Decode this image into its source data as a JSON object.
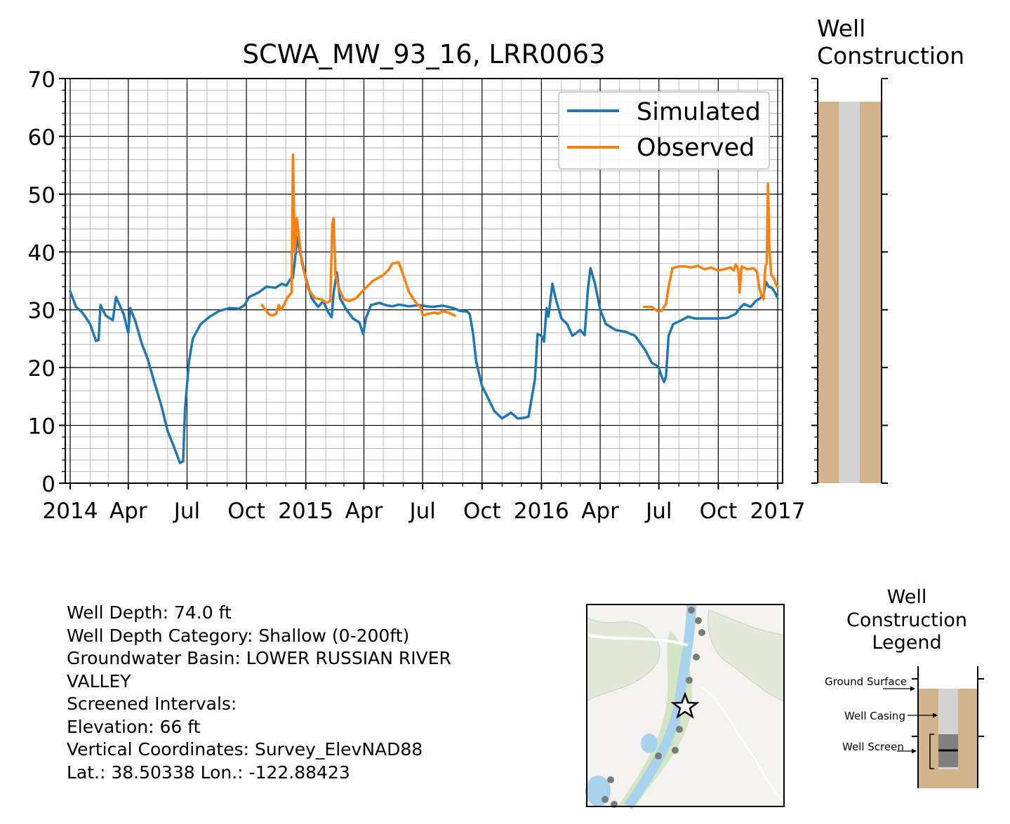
{
  "chart_data": {
    "type": "line",
    "title": "SCWA_MW_93_16, LRR0063",
    "xlabel": "",
    "ylabel": "",
    "ylim": [
      0,
      70
    ],
    "xlim": [
      "2014-01-01",
      "2017-01-01"
    ],
    "grid": true,
    "legend_position": "top-right",
    "yticks": [
      "0",
      "10",
      "20",
      "30",
      "40",
      "50",
      "60",
      "70"
    ],
    "xticks": [
      {
        "date": "2014-01-01",
        "label": "2014"
      },
      {
        "date": "2014-04-01",
        "label": "Apr"
      },
      {
        "date": "2014-07-01",
        "label": "Jul"
      },
      {
        "date": "2014-10-01",
        "label": "Oct"
      },
      {
        "date": "2015-01-01",
        "label": "2015"
      },
      {
        "date": "2015-04-01",
        "label": "Apr"
      },
      {
        "date": "2015-07-01",
        "label": "Jul"
      },
      {
        "date": "2015-10-01",
        "label": "Oct"
      },
      {
        "date": "2016-01-01",
        "label": "2016"
      },
      {
        "date": "2016-04-01",
        "label": "Apr"
      },
      {
        "date": "2016-07-01",
        "label": "Jul"
      },
      {
        "date": "2016-10-01",
        "label": "Oct"
      },
      {
        "date": "2017-01-01",
        "label": "2017"
      }
    ],
    "series": [
      {
        "name": "Simulated",
        "color": "#1f77b4",
        "points": [
          [
            "2014-01-01",
            33.2
          ],
          [
            "2014-01-10",
            30.5
          ],
          [
            "2014-01-20",
            29.5
          ],
          [
            "2014-02-01",
            27.5
          ],
          [
            "2014-02-10",
            24.6
          ],
          [
            "2014-02-14",
            24.8
          ],
          [
            "2014-02-17",
            30.8
          ],
          [
            "2014-02-25",
            29
          ],
          [
            "2014-03-08",
            28.2
          ],
          [
            "2014-03-13",
            32.2
          ],
          [
            "2014-03-25",
            29.2
          ],
          [
            "2014-04-01",
            26
          ],
          [
            "2014-04-04",
            30.3
          ],
          [
            "2014-04-12",
            28
          ],
          [
            "2014-04-22",
            24.1
          ],
          [
            "2014-05-01",
            21.5
          ],
          [
            "2014-05-10",
            18
          ],
          [
            "2014-05-22",
            13.5
          ],
          [
            "2014-06-01",
            9
          ],
          [
            "2014-06-10",
            6.5
          ],
          [
            "2014-06-20",
            3.5
          ],
          [
            "2014-06-25",
            3.8
          ],
          [
            "2014-06-28",
            13
          ],
          [
            "2014-07-04",
            21
          ],
          [
            "2014-07-10",
            25
          ],
          [
            "2014-07-22",
            27.5
          ],
          [
            "2014-08-05",
            28.8
          ],
          [
            "2014-08-20",
            29.8
          ],
          [
            "2014-09-05",
            30.3
          ],
          [
            "2014-09-20",
            30.2
          ],
          [
            "2014-09-28",
            30.8
          ],
          [
            "2014-10-05",
            32.2
          ],
          [
            "2014-10-20",
            33
          ],
          [
            "2014-11-01",
            34
          ],
          [
            "2014-11-15",
            33.8
          ],
          [
            "2014-11-25",
            34.5
          ],
          [
            "2014-12-02",
            34.2
          ],
          [
            "2014-12-08",
            35.3
          ],
          [
            "2014-12-12",
            35.5
          ],
          [
            "2014-12-15",
            38.5
          ],
          [
            "2014-12-19",
            42.5
          ],
          [
            "2014-12-23",
            40
          ],
          [
            "2015-01-01",
            35.5
          ],
          [
            "2015-01-10",
            32
          ],
          [
            "2015-01-20",
            30.5
          ],
          [
            "2015-01-28",
            31.5
          ],
          [
            "2015-02-05",
            29.5
          ],
          [
            "2015-02-10",
            28.7
          ],
          [
            "2015-02-13",
            32.8
          ],
          [
            "2015-02-18",
            36.5
          ],
          [
            "2015-02-23",
            32
          ],
          [
            "2015-03-05",
            30
          ],
          [
            "2015-03-15",
            28.5
          ],
          [
            "2015-03-25",
            27.8
          ],
          [
            "2015-03-31",
            25.8
          ],
          [
            "2015-04-04",
            28.5
          ],
          [
            "2015-04-12",
            30.8
          ],
          [
            "2015-04-25",
            31.2
          ],
          [
            "2015-05-05",
            30.8
          ],
          [
            "2015-05-15",
            30.6
          ],
          [
            "2015-05-25",
            30.9
          ],
          [
            "2015-06-10",
            30.6
          ],
          [
            "2015-06-25",
            30.8
          ],
          [
            "2015-07-15",
            30.5
          ],
          [
            "2015-08-01",
            30.7
          ],
          [
            "2015-08-10",
            30.5
          ],
          [
            "2015-08-20",
            30.2
          ],
          [
            "2015-08-28",
            29.8
          ],
          [
            "2015-09-08",
            29.7
          ],
          [
            "2015-09-12",
            29.2
          ],
          [
            "2015-09-17",
            26
          ],
          [
            "2015-09-22",
            21
          ],
          [
            "2015-10-01",
            16.8
          ],
          [
            "2015-10-10",
            14.8
          ],
          [
            "2015-10-20",
            12.5
          ],
          [
            "2015-11-01",
            11.2
          ],
          [
            "2015-11-15",
            12.2
          ],
          [
            "2015-11-25",
            11.2
          ],
          [
            "2015-12-05",
            11.3
          ],
          [
            "2015-12-12",
            11.5
          ],
          [
            "2015-12-22",
            18
          ],
          [
            "2015-12-26",
            25.8
          ],
          [
            "2016-01-01",
            25.5
          ],
          [
            "2016-01-05",
            24.5
          ],
          [
            "2016-01-09",
            30.3
          ],
          [
            "2016-01-12",
            28.8
          ],
          [
            "2016-01-18",
            34.5
          ],
          [
            "2016-01-23",
            32
          ],
          [
            "2016-02-01",
            28.5
          ],
          [
            "2016-02-10",
            27.5
          ],
          [
            "2016-02-18",
            25.5
          ],
          [
            "2016-03-01",
            26.5
          ],
          [
            "2016-03-08",
            25.6
          ],
          [
            "2016-03-13",
            33.5
          ],
          [
            "2016-03-17",
            37.2
          ],
          [
            "2016-03-24",
            34.5
          ],
          [
            "2016-04-01",
            30
          ],
          [
            "2016-04-10",
            27.5
          ],
          [
            "2016-04-25",
            26.5
          ],
          [
            "2016-05-10",
            26.2
          ],
          [
            "2016-05-25",
            25.5
          ],
          [
            "2016-06-10",
            23
          ],
          [
            "2016-06-20",
            20.8
          ],
          [
            "2016-06-30",
            20.2
          ],
          [
            "2016-07-05",
            18.5
          ],
          [
            "2016-07-09",
            17.5
          ],
          [
            "2016-07-12",
            18.5
          ],
          [
            "2016-07-16",
            25.5
          ],
          [
            "2016-07-23",
            27.5
          ],
          [
            "2016-08-05",
            28.2
          ],
          [
            "2016-08-15",
            28.8
          ],
          [
            "2016-08-25",
            28.5
          ],
          [
            "2016-09-10",
            28.5
          ],
          [
            "2016-09-30",
            28.5
          ],
          [
            "2016-10-15",
            28.6
          ],
          [
            "2016-10-28",
            29.3
          ],
          [
            "2016-11-05",
            30.5
          ],
          [
            "2016-11-10",
            31
          ],
          [
            "2016-11-20",
            30.5
          ],
          [
            "2016-11-28",
            31.5
          ],
          [
            "2016-12-05",
            32
          ],
          [
            "2016-12-10",
            32.5
          ],
          [
            "2016-12-14",
            34.8
          ],
          [
            "2016-12-18",
            34
          ],
          [
            "2016-12-23",
            33.8
          ],
          [
            "2016-12-28",
            33
          ],
          [
            "2016-12-31",
            32.2
          ]
        ]
      },
      {
        "name": "Observed",
        "color": "#ff7f0e",
        "segments": [
          [
            [
              "2014-10-25",
              30.8
            ],
            [
              "2014-11-01",
              29.8
            ],
            [
              "2014-11-05",
              29.2
            ],
            [
              "2014-11-10",
              29
            ],
            [
              "2014-11-16",
              29.3
            ],
            [
              "2014-11-20",
              30.8
            ],
            [
              "2014-11-24",
              30
            ],
            [
              "2014-11-29",
              31
            ],
            [
              "2014-12-03",
              32
            ],
            [
              "2014-12-10",
              33
            ],
            [
              "2014-12-12",
              56.8
            ],
            [
              "2014-12-15",
              40
            ],
            [
              "2014-12-18",
              45.8
            ],
            [
              "2014-12-21",
              43
            ],
            [
              "2014-12-26",
              38
            ],
            [
              "2015-01-05",
              33.5
            ],
            [
              "2015-01-15",
              32
            ],
            [
              "2015-01-25",
              31.8
            ],
            [
              "2015-02-02",
              31.2
            ],
            [
              "2015-02-08",
              31.5
            ],
            [
              "2015-02-11",
              44.8
            ],
            [
              "2015-02-13",
              45.8
            ],
            [
              "2015-02-16",
              36
            ],
            [
              "2015-02-22",
              33.5
            ],
            [
              "2015-03-01",
              31.8
            ],
            [
              "2015-03-10",
              31.5
            ],
            [
              "2015-03-20",
              32
            ],
            [
              "2015-04-01",
              33.5
            ],
            [
              "2015-04-15",
              35
            ],
            [
              "2015-05-01",
              36
            ],
            [
              "2015-05-10",
              37
            ],
            [
              "2015-05-15",
              38
            ],
            [
              "2015-05-25",
              38.2
            ],
            [
              "2015-06-01",
              36
            ],
            [
              "2015-06-10",
              33
            ],
            [
              "2015-06-22",
              31
            ],
            [
              "2015-06-28",
              30.5
            ],
            [
              "2015-07-01",
              29
            ],
            [
              "2015-07-10",
              29.3
            ],
            [
              "2015-07-20",
              29.5
            ],
            [
              "2015-07-25",
              29.3
            ],
            [
              "2015-08-01",
              29.8
            ],
            [
              "2015-08-10",
              29.5
            ],
            [
              "2015-08-20",
              29
            ]
          ],
          [
            [
              "2016-06-08",
              30.5
            ],
            [
              "2016-06-20",
              30.5
            ],
            [
              "2016-06-28",
              29.8
            ],
            [
              "2016-07-05",
              29.8
            ],
            [
              "2016-07-12",
              31
            ],
            [
              "2016-07-16",
              34
            ],
            [
              "2016-07-22",
              37.2
            ],
            [
              "2016-08-01",
              37.5
            ],
            [
              "2016-08-10",
              37.5
            ],
            [
              "2016-08-20",
              37.3
            ],
            [
              "2016-08-30",
              37.6
            ],
            [
              "2016-09-10",
              37
            ],
            [
              "2016-09-20",
              37.3
            ],
            [
              "2016-09-30",
              36.8
            ],
            [
              "2016-10-10",
              37
            ],
            [
              "2016-10-20",
              37.3
            ],
            [
              "2016-10-25",
              36.8
            ],
            [
              "2016-10-28",
              37.8
            ],
            [
              "2016-11-01",
              37
            ],
            [
              "2016-11-03",
              33
            ],
            [
              "2016-11-06",
              37.5
            ],
            [
              "2016-11-15",
              37
            ],
            [
              "2016-11-25",
              37.2
            ],
            [
              "2016-11-30",
              36.5
            ],
            [
              "2016-12-03",
              34
            ],
            [
              "2016-12-07",
              32.5
            ],
            [
              "2016-12-10",
              31.8
            ],
            [
              "2016-12-13",
              37.5
            ],
            [
              "2016-12-15",
              38
            ],
            [
              "2016-12-17",
              51.8
            ],
            [
              "2016-12-19",
              41
            ],
            [
              "2016-12-22",
              36
            ],
            [
              "2016-12-26",
              35.5
            ],
            [
              "2016-12-29",
              34.5
            ],
            [
              "2016-12-31",
              34
            ]
          ]
        ]
      }
    ]
  },
  "well_construction": {
    "title_line1": "Well",
    "title_line2": "Construction",
    "ground_surface_elevation": 66,
    "colors": {
      "formation": "#d2b48c",
      "casing": "#d3d3d3"
    }
  },
  "info": {
    "well_depth": "Well Depth: 74.0 ft",
    "depth_category": "Well Depth Category: Shallow (0-200ft)",
    "basin": "Groundwater Basin: LOWER RUSSIAN RIVER",
    "basin_cont": "VALLEY",
    "screened": "Screened Intervals:",
    "elevation": "Elevation: 66 ft",
    "vertical_coords": "Vertical Coordinates: Survey_ElevNAD88",
    "latlon": "Lat.: 38.50338 Lon.: -122.88423"
  },
  "legend_box": {
    "title_line1": "Well",
    "title_line2": "Construction",
    "title_line3": "Legend",
    "ground_surface": "Ground Surface",
    "well_casing": "Well Casing",
    "well_screen": "Well Screen"
  }
}
